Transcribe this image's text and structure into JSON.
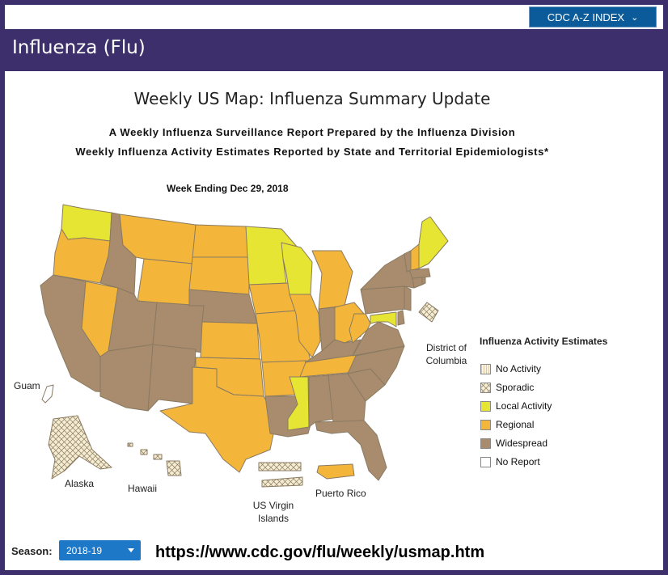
{
  "header": {
    "az_index_label": "CDC A-Z INDEX",
    "page_title": "Influenza (Flu)"
  },
  "map": {
    "title": "Weekly US Map: Influenza Summary Update",
    "subtitle1": "A Weekly Influenza Surveillance Report Prepared by the Influenza Division",
    "subtitle2": "Weekly Influenza Activity Estimates Reported by State and Territorial Epidemiologists*",
    "week_ending": "Week Ending Dec 29, 2018",
    "colors": {
      "no_activity": "#fbf3df",
      "sporadic": "#f3e9c8",
      "local": "#e7e534",
      "regional": "#f3b63b",
      "widespread": "#a88c6d",
      "no_report": "#ffffff",
      "border": "#8a7a62"
    },
    "territory_labels": {
      "dc": "District of Columbia",
      "guam": "Guam",
      "alaska": "Alaska",
      "hawaii": "Hawaii",
      "usvi": "US Virgin Islands",
      "puerto_rico": "Puerto Rico"
    },
    "regions": [
      {
        "name": "Washington",
        "level": "Local Activity"
      },
      {
        "name": "Oregon",
        "level": "Regional"
      },
      {
        "name": "California",
        "level": "Widespread"
      },
      {
        "name": "Nevada",
        "level": "Regional"
      },
      {
        "name": "Idaho",
        "level": "Widespread"
      },
      {
        "name": "Montana",
        "level": "Regional"
      },
      {
        "name": "Wyoming",
        "level": "Regional"
      },
      {
        "name": "Utah",
        "level": "Widespread"
      },
      {
        "name": "Arizona",
        "level": "Widespread"
      },
      {
        "name": "Colorado",
        "level": "Widespread"
      },
      {
        "name": "New Mexico",
        "level": "Widespread"
      },
      {
        "name": "North Dakota",
        "level": "Regional"
      },
      {
        "name": "South Dakota",
        "level": "Regional"
      },
      {
        "name": "Nebraska",
        "level": "Widespread"
      },
      {
        "name": "Kansas",
        "level": "Regional"
      },
      {
        "name": "Oklahoma",
        "level": "Regional"
      },
      {
        "name": "Texas",
        "level": "Regional"
      },
      {
        "name": "Minnesota",
        "level": "Local Activity"
      },
      {
        "name": "Iowa",
        "level": "Regional"
      },
      {
        "name": "Missouri",
        "level": "Regional"
      },
      {
        "name": "Arkansas",
        "level": "Regional"
      },
      {
        "name": "Louisiana",
        "level": "Widespread"
      },
      {
        "name": "Wisconsin",
        "level": "Local Activity"
      },
      {
        "name": "Illinois",
        "level": "Regional"
      },
      {
        "name": "Michigan",
        "level": "Regional"
      },
      {
        "name": "Indiana",
        "level": "Widespread"
      },
      {
        "name": "Ohio",
        "level": "Regional"
      },
      {
        "name": "Kentucky",
        "level": "Widespread"
      },
      {
        "name": "Tennessee",
        "level": "Regional"
      },
      {
        "name": "Mississippi",
        "level": "Local Activity"
      },
      {
        "name": "Alabama",
        "level": "Widespread"
      },
      {
        "name": "Georgia",
        "level": "Widespread"
      },
      {
        "name": "Florida",
        "level": "Widespread"
      },
      {
        "name": "South Carolina",
        "level": "Widespread"
      },
      {
        "name": "North Carolina",
        "level": "Widespread"
      },
      {
        "name": "Virginia",
        "level": "Widespread"
      },
      {
        "name": "West Virginia",
        "level": "Regional"
      },
      {
        "name": "Maryland",
        "level": "Local Activity"
      },
      {
        "name": "Delaware",
        "level": "Widespread"
      },
      {
        "name": "Pennsylvania",
        "level": "Widespread"
      },
      {
        "name": "New Jersey",
        "level": "Widespread"
      },
      {
        "name": "New York",
        "level": "Widespread"
      },
      {
        "name": "Connecticut",
        "level": "Widespread"
      },
      {
        "name": "Rhode Island",
        "level": "Widespread"
      },
      {
        "name": "Massachusetts",
        "level": "Widespread"
      },
      {
        "name": "Vermont",
        "level": "Widespread"
      },
      {
        "name": "New Hampshire",
        "level": "Regional"
      },
      {
        "name": "Maine",
        "level": "Local Activity"
      },
      {
        "name": "Alaska",
        "level": "Sporadic"
      },
      {
        "name": "Hawaii",
        "level": "Sporadic"
      },
      {
        "name": "Guam",
        "level": "No Report"
      },
      {
        "name": "District of Columbia",
        "level": "Sporadic"
      },
      {
        "name": "US Virgin Islands",
        "level": "Sporadic"
      },
      {
        "name": "Puerto Rico",
        "level": "Regional"
      }
    ]
  },
  "legend": {
    "title": "Influenza Activity Estimates",
    "items": [
      {
        "label": "No Activity",
        "color": "#fbf3df"
      },
      {
        "label": "Sporadic",
        "color": "#f3e9c8"
      },
      {
        "label": "Local Activity",
        "color": "#e7e534"
      },
      {
        "label": "Regional",
        "color": "#f3b63b"
      },
      {
        "label": "Widespread",
        "color": "#a88c6d"
      },
      {
        "label": "No Report",
        "color": "#ffffff"
      }
    ]
  },
  "footer": {
    "season_label": "Season:",
    "season_value": "2018-19",
    "url": "https://www.cdc.gov/flu/weekly/usmap.htm"
  }
}
